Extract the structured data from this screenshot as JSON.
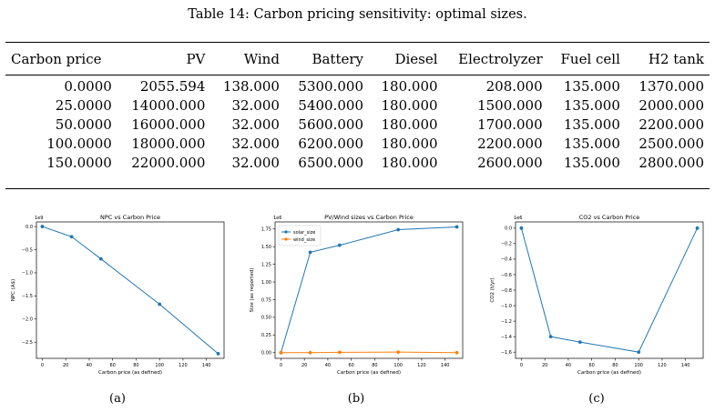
{
  "caption": "Table 14: Carbon pricing sensitivity: optimal sizes.",
  "table": {
    "headers": [
      "Carbon price",
      "PV",
      "Wind",
      "Battery",
      "Diesel",
      "Electrolyzer",
      "Fuel cell",
      "H2 tank"
    ],
    "rows": [
      [
        "0.0000",
        "2055.594",
        "138.000",
        "5300.000",
        "180.000",
        "208.000",
        "135.000",
        "1370.000"
      ],
      [
        "25.0000",
        "14000.000",
        "32.000",
        "5400.000",
        "180.000",
        "1500.000",
        "135.000",
        "2000.000"
      ],
      [
        "50.0000",
        "16000.000",
        "32.000",
        "5600.000",
        "180.000",
        "1700.000",
        "135.000",
        "2200.000"
      ],
      [
        "100.0000",
        "18000.000",
        "32.000",
        "6200.000",
        "180.000",
        "2200.000",
        "135.000",
        "2500.000"
      ],
      [
        "150.0000",
        "22000.000",
        "32.000",
        "6500.000",
        "180.000",
        "2600.000",
        "135.000",
        "2800.000"
      ]
    ]
  },
  "subfigure_labels": [
    "(a)",
    "(b)",
    "(c)"
  ],
  "chart_data": [
    {
      "type": "line",
      "title": "NPC vs Carbon Price",
      "xlabel": "Carbon price (as defined)",
      "ylabel": "NPC (A$)",
      "offset_text": "1e9",
      "xlim": [
        -5,
        155
      ],
      "ylim": [
        -2.85,
        0.1
      ],
      "xticks": [
        0,
        20,
        40,
        60,
        80,
        100,
        120,
        140
      ],
      "yticks": [
        0.0,
        -0.5,
        -1.0,
        -1.5,
        -2.0,
        -2.5
      ],
      "ytick_labels": [
        "0.0",
        "−0.5",
        "−1.0",
        "−1.5",
        "−2.0",
        "−2.5"
      ],
      "series": [
        {
          "x": [
            0,
            25,
            50,
            100,
            150
          ],
          "y": [
            0.0,
            -0.22,
            -0.7,
            -1.68,
            -2.75
          ],
          "color": "#1f77b4"
        }
      ],
      "grid": false
    },
    {
      "type": "line",
      "title": "PV/Wind sizes vs Carbon Price",
      "xlabel": "Carbon price (as defined)",
      "ylabel": "Size (as reported)",
      "offset_text": "1e6",
      "xlim": [
        -5,
        155
      ],
      "ylim": [
        -0.08,
        1.85
      ],
      "xticks": [
        0,
        20,
        40,
        60,
        80,
        100,
        120,
        140
      ],
      "yticks": [
        0.0,
        0.25,
        0.5,
        0.75,
        1.0,
        1.25,
        1.5,
        1.75
      ],
      "ytick_labels": [
        "0.00",
        "0.25",
        "0.50",
        "0.75",
        "1.00",
        "1.25",
        "1.50",
        "1.75"
      ],
      "series": [
        {
          "name": "solar_size",
          "x": [
            0,
            25,
            50,
            100,
            150
          ],
          "y": [
            0.0,
            1.42,
            1.52,
            1.74,
            1.78
          ],
          "color": "#1f77b4"
        },
        {
          "name": "wind_size",
          "x": [
            0,
            25,
            50,
            100,
            150
          ],
          "y": [
            0.0,
            0.0,
            0.005,
            0.008,
            0.0
          ],
          "color": "#ff7f0e"
        }
      ],
      "legend": "top-left",
      "grid": false
    },
    {
      "type": "line",
      "title": "CO2 vs Carbon Price",
      "xlabel": "Carbon price (as defined)",
      "ylabel": "CO2 (t/yr)",
      "offset_text": "1e6",
      "xlim": [
        -5,
        155
      ],
      "ylim": [
        -1.68,
        0.08
      ],
      "xticks": [
        0,
        20,
        40,
        60,
        80,
        100,
        120,
        140
      ],
      "yticks": [
        0.0,
        -0.2,
        -0.4,
        -0.6,
        -0.8,
        -1.0,
        -1.2,
        -1.4,
        -1.6
      ],
      "ytick_labels": [
        "0.0",
        "−0.2",
        "−0.4",
        "−0.6",
        "−0.8",
        "−1.0",
        "−1.2",
        "−1.4",
        "−1.6"
      ],
      "series": [
        {
          "x": [
            0,
            25,
            50,
            100,
            150
          ],
          "y": [
            0.0,
            -1.4,
            -1.47,
            -1.6,
            0.0
          ],
          "color": "#1f77b4"
        }
      ],
      "grid": false
    }
  ]
}
